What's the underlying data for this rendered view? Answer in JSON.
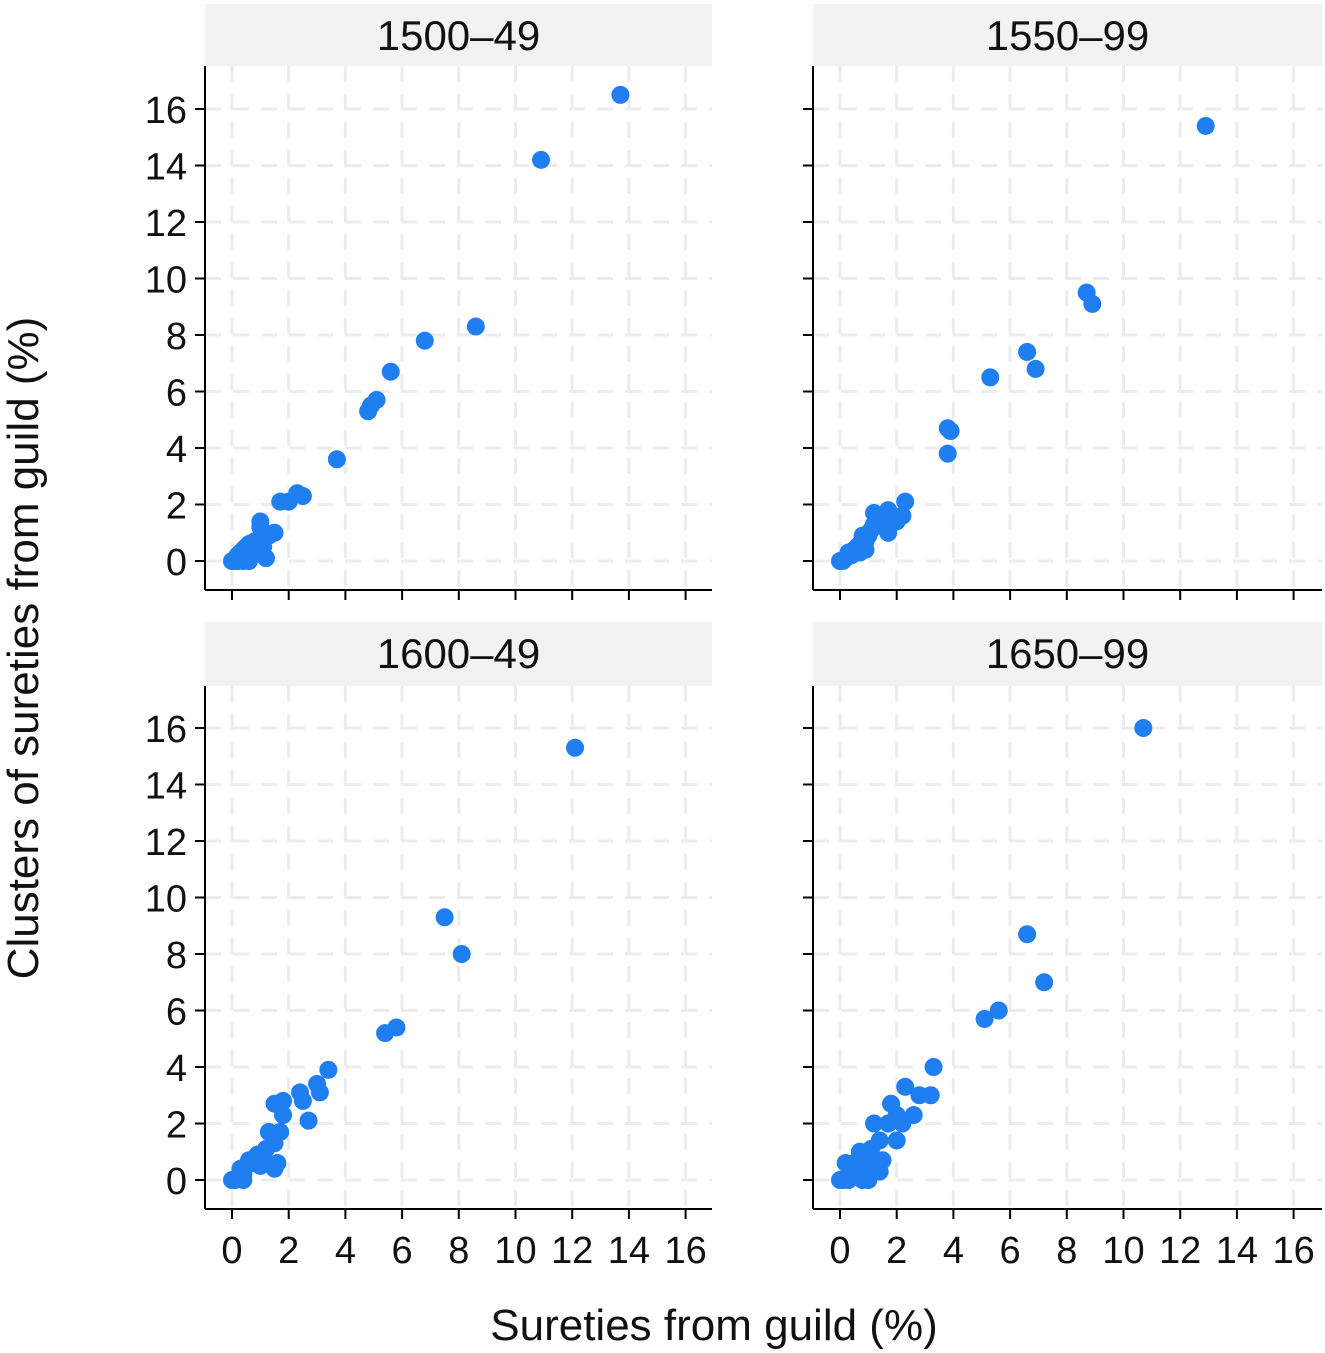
{
  "figure": {
    "xlabel": "Sureties from guild (%)",
    "ylabel": "Clusters of sureties from guild (%)"
  },
  "colors": {
    "point": "#1f7ef0",
    "strip": "#f2f2f2",
    "grid": "#ececec",
    "axis": "#000000"
  },
  "chart_data": [
    {
      "type": "scatter",
      "title": "1500–49",
      "xlim": [
        -1,
        16.5
      ],
      "ylim": [
        -1,
        17.5
      ],
      "xticks": [
        0,
        2,
        4,
        6,
        8,
        10,
        12,
        14,
        16
      ],
      "yticks": [
        0,
        2,
        4,
        6,
        8,
        10,
        12,
        14,
        16
      ],
      "x_tick_labels_shown": false,
      "y_tick_labels_shown": true,
      "points": [
        [
          13.7,
          16.5
        ],
        [
          10.9,
          14.2
        ],
        [
          8.6,
          8.3
        ],
        [
          6.8,
          7.8
        ],
        [
          5.6,
          6.7
        ],
        [
          5.1,
          5.7
        ],
        [
          4.9,
          5.5
        ],
        [
          4.8,
          5.3
        ],
        [
          3.7,
          3.6
        ],
        [
          2.5,
          2.3
        ],
        [
          2.3,
          2.4
        ],
        [
          2.0,
          2.1
        ],
        [
          1.7,
          2.1
        ],
        [
          1.5,
          1.0
        ],
        [
          1.3,
          0.9
        ],
        [
          1.1,
          0.5
        ],
        [
          1.0,
          1.4
        ],
        [
          1.0,
          1.2
        ],
        [
          1.1,
          0.8
        ],
        [
          0.9,
          0.6
        ],
        [
          0.8,
          0.7
        ],
        [
          0.8,
          0.3
        ],
        [
          0.7,
          0.4
        ],
        [
          0.6,
          0.6
        ],
        [
          0.5,
          0.5
        ],
        [
          0.5,
          0.2
        ],
        [
          0.4,
          0.0
        ],
        [
          0.3,
          0.3
        ],
        [
          0.2,
          0.2
        ],
        [
          0.1,
          0.0
        ],
        [
          0.0,
          0.0
        ],
        [
          0.6,
          0.0
        ],
        [
          1.2,
          0.1
        ],
        [
          0.4,
          0.4
        ],
        [
          0.2,
          0.0
        ],
        [
          0.9,
          0.3
        ]
      ]
    },
    {
      "type": "scatter",
      "title": "1550–99",
      "xlim": [
        -1,
        16.5
      ],
      "ylim": [
        -1,
        17.5
      ],
      "xticks": [
        0,
        2,
        4,
        6,
        8,
        10,
        12,
        14,
        16
      ],
      "yticks": [
        0,
        2,
        4,
        6,
        8,
        10,
        12,
        14,
        16
      ],
      "x_tick_labels_shown": false,
      "y_tick_labels_shown": false,
      "points": [
        [
          12.9,
          15.4
        ],
        [
          8.7,
          9.5
        ],
        [
          8.9,
          9.1
        ],
        [
          6.6,
          7.4
        ],
        [
          6.9,
          6.8
        ],
        [
          5.3,
          6.5
        ],
        [
          3.8,
          4.7
        ],
        [
          3.9,
          4.6
        ],
        [
          3.8,
          3.8
        ],
        [
          2.3,
          2.1
        ],
        [
          2.2,
          1.6
        ],
        [
          1.7,
          1.8
        ],
        [
          2.0,
          1.4
        ],
        [
          1.5,
          1.6
        ],
        [
          1.7,
          1.0
        ],
        [
          1.2,
          1.7
        ],
        [
          1.1,
          1.1
        ],
        [
          1.2,
          1.3
        ],
        [
          1.0,
          0.9
        ],
        [
          0.9,
          0.7
        ],
        [
          0.8,
          0.9
        ],
        [
          0.7,
          0.6
        ],
        [
          0.7,
          0.3
        ],
        [
          0.6,
          0.5
        ],
        [
          0.5,
          0.4
        ],
        [
          0.4,
          0.2
        ],
        [
          0.3,
          0.3
        ],
        [
          0.2,
          0.1
        ],
        [
          0.1,
          0.0
        ],
        [
          0.0,
          0.0
        ],
        [
          0.9,
          0.4
        ],
        [
          1.4,
          1.3
        ]
      ]
    },
    {
      "type": "scatter",
      "title": "1600–49",
      "xlim": [
        -1,
        16.5
      ],
      "ylim": [
        -1,
        17.5
      ],
      "xticks": [
        0,
        2,
        4,
        6,
        8,
        10,
        12,
        14,
        16
      ],
      "yticks": [
        0,
        2,
        4,
        6,
        8,
        10,
        12,
        14,
        16
      ],
      "x_tick_labels_shown": true,
      "y_tick_labels_shown": true,
      "points": [
        [
          12.1,
          15.3
        ],
        [
          7.5,
          9.3
        ],
        [
          8.1,
          8.0
        ],
        [
          5.8,
          5.4
        ],
        [
          5.4,
          5.2
        ],
        [
          3.4,
          3.9
        ],
        [
          3.0,
          3.4
        ],
        [
          3.1,
          3.1
        ],
        [
          2.4,
          3.1
        ],
        [
          2.5,
          2.8
        ],
        [
          2.7,
          2.1
        ],
        [
          1.8,
          2.8
        ],
        [
          1.5,
          2.7
        ],
        [
          1.8,
          2.3
        ],
        [
          1.7,
          1.7
        ],
        [
          1.3,
          1.7
        ],
        [
          1.5,
          1.3
        ],
        [
          1.2,
          1.1
        ],
        [
          1.1,
          0.8
        ],
        [
          1.0,
          0.6
        ],
        [
          0.9,
          0.9
        ],
        [
          0.8,
          0.6
        ],
        [
          0.6,
          0.7
        ],
        [
          0.5,
          0.5
        ],
        [
          0.4,
          0.2
        ],
        [
          0.3,
          0.4
        ],
        [
          0.2,
          0.1
        ],
        [
          0.1,
          0.0
        ],
        [
          0.0,
          0.0
        ],
        [
          1.6,
          0.6
        ],
        [
          1.5,
          0.4
        ],
        [
          1.0,
          0.5
        ],
        [
          0.4,
          0.0
        ]
      ]
    },
    {
      "type": "scatter",
      "title": "1650–99",
      "xlim": [
        -1,
        16.5
      ],
      "ylim": [
        -1,
        17.5
      ],
      "xticks": [
        0,
        2,
        4,
        6,
        8,
        10,
        12,
        14,
        16
      ],
      "yticks": [
        0,
        2,
        4,
        6,
        8,
        10,
        12,
        14,
        16
      ],
      "x_tick_labels_shown": true,
      "y_tick_labels_shown": false,
      "points": [
        [
          10.7,
          16.0
        ],
        [
          6.6,
          8.7
        ],
        [
          7.2,
          7.0
        ],
        [
          5.6,
          6.0
        ],
        [
          5.1,
          5.7
        ],
        [
          3.3,
          4.0
        ],
        [
          3.2,
          3.0
        ],
        [
          2.8,
          3.0
        ],
        [
          2.3,
          3.3
        ],
        [
          2.0,
          2.3
        ],
        [
          1.8,
          2.7
        ],
        [
          2.6,
          2.3
        ],
        [
          2.2,
          2.0
        ],
        [
          2.0,
          1.4
        ],
        [
          1.7,
          2.0
        ],
        [
          1.2,
          2.0
        ],
        [
          1.4,
          1.4
        ],
        [
          1.4,
          0.3
        ],
        [
          1.2,
          0.7
        ],
        [
          1.1,
          1.1
        ],
        [
          1.0,
          0.4
        ],
        [
          0.8,
          0.8
        ],
        [
          0.7,
          1.0
        ],
        [
          0.6,
          0.4
        ],
        [
          0.5,
          0.6
        ],
        [
          0.4,
          0.4
        ],
        [
          0.3,
          0.2
        ],
        [
          0.2,
          0.6
        ],
        [
          0.1,
          0.0
        ],
        [
          0.0,
          0.0
        ],
        [
          0.8,
          0.0
        ],
        [
          0.3,
          0.0
        ],
        [
          1.0,
          0.0
        ],
        [
          1.5,
          0.7
        ]
      ]
    }
  ]
}
